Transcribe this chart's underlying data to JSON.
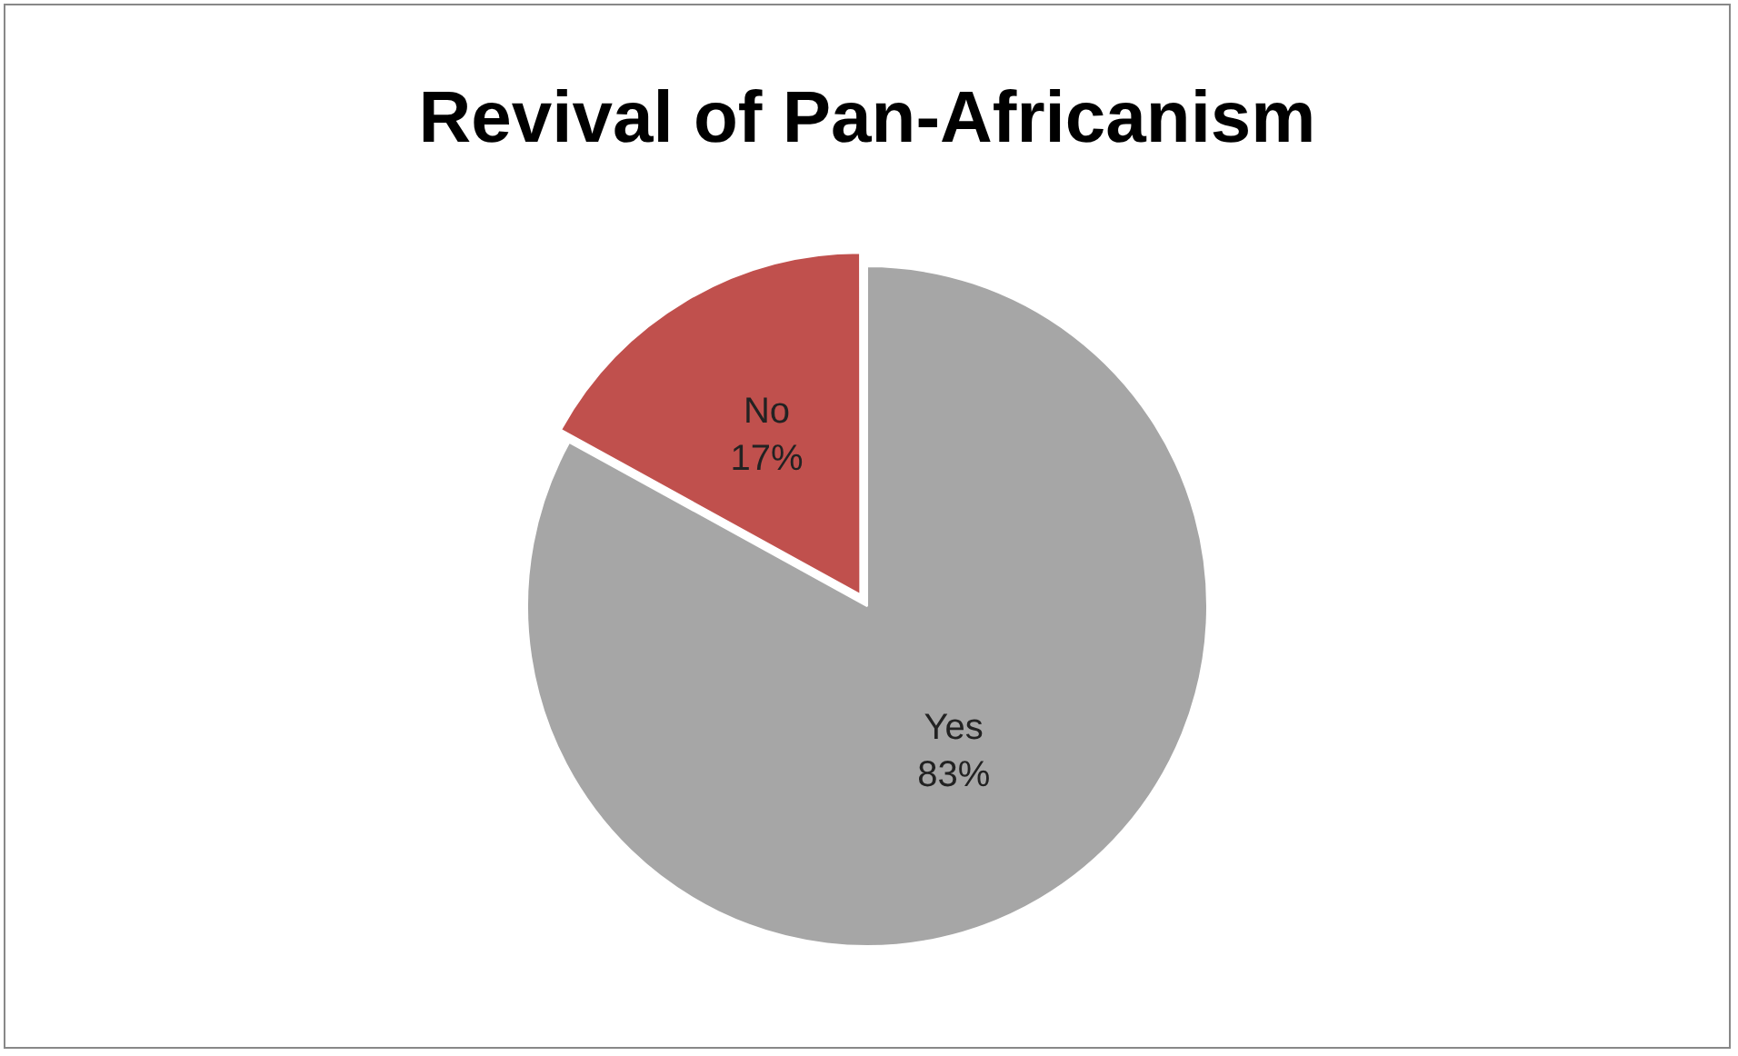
{
  "chart_data": {
    "type": "pie",
    "title": "Revival of Pan-Africanism",
    "categories": [
      "Yes",
      "No"
    ],
    "values": [
      83,
      17
    ],
    "colors": [
      "#a6a6a6",
      "#c0504d"
    ],
    "value_labels": [
      "83%",
      "17%"
    ],
    "legend": false
  }
}
